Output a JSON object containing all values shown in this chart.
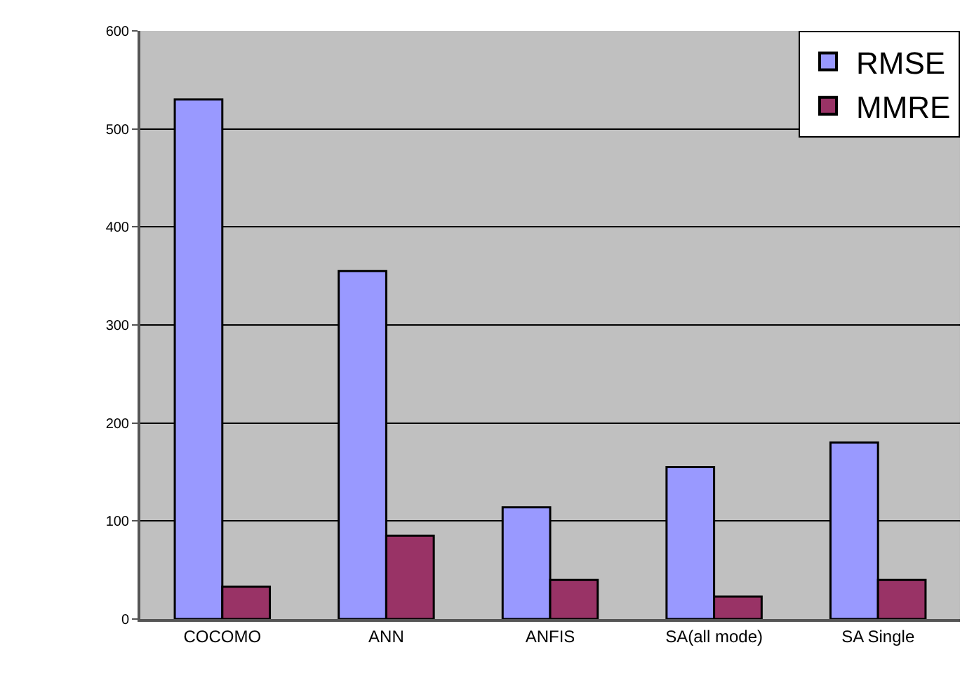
{
  "chart_data": {
    "type": "bar",
    "categories": [
      "COCOMO",
      "ANN",
      "ANFIS",
      "SA(all mode)",
      "SA Single"
    ],
    "series": [
      {
        "name": "RMSE",
        "color": "#9999ff",
        "values": [
          530,
          355,
          114,
          155,
          180
        ]
      },
      {
        "name": "MMRE",
        "color": "#993366",
        "values": [
          33,
          85,
          40,
          23,
          40
        ]
      }
    ],
    "ylim": [
      0,
      600
    ],
    "yticks": [
      0,
      100,
      200,
      300,
      400,
      500,
      600
    ],
    "grid": "y",
    "legend": "top right"
  }
}
